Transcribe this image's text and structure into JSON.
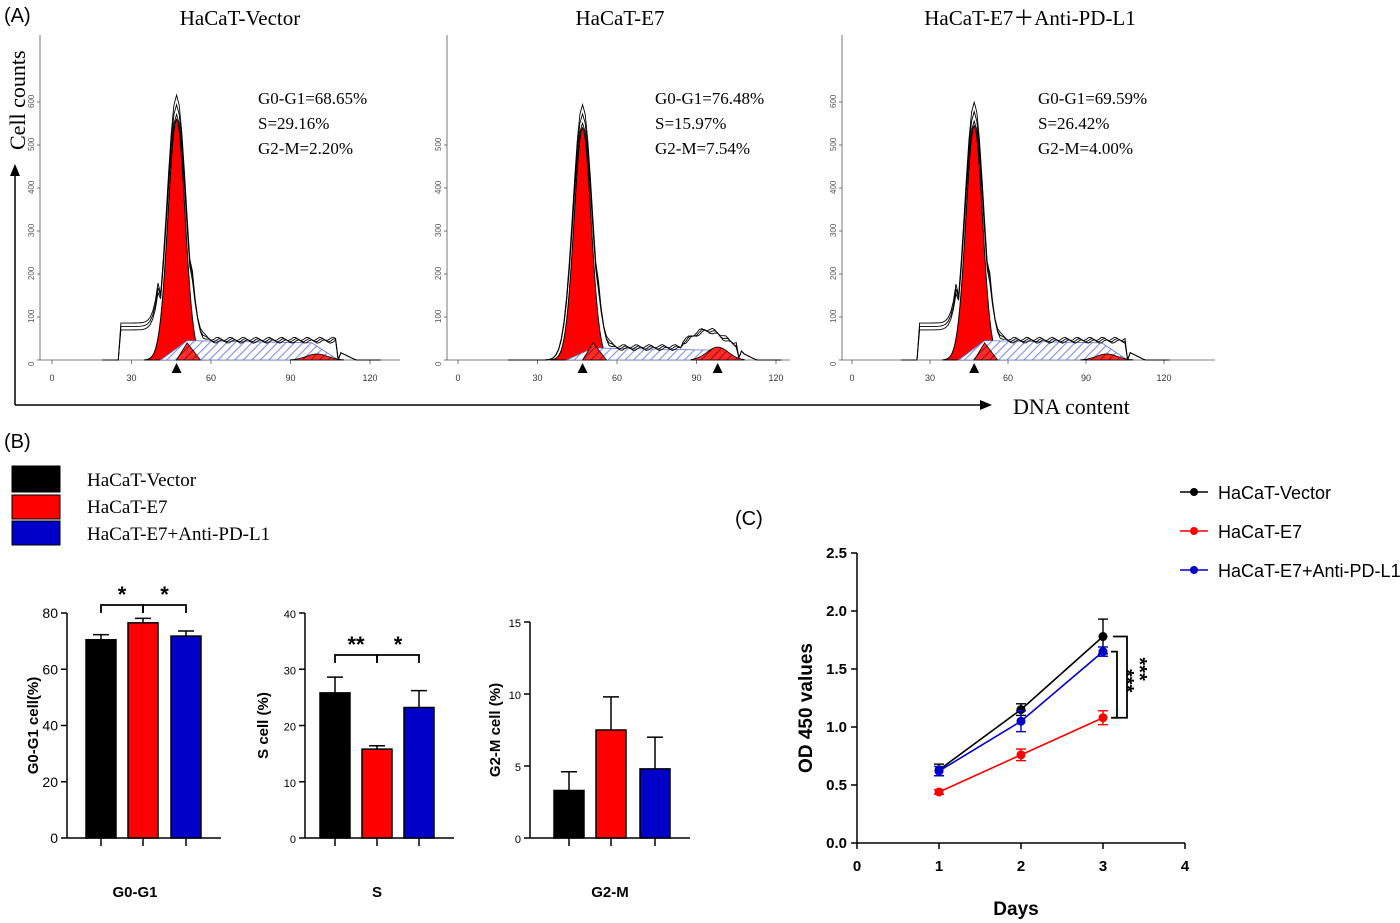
{
  "panels": {
    "A": {
      "panel_label": "(A)",
      "y_axis_label": "Cell counts",
      "x_axis_label": "DNA content",
      "histograms": [
        {
          "title": "HaCaT-Vector",
          "stats": [
            "G0-G1=68.65%",
            "S=29.16%",
            "G2-M=2.20%"
          ],
          "x_ticks": [
            "0",
            "30",
            "60",
            "90",
            "120"
          ],
          "y_ticks": [
            "0",
            "100",
            "200",
            "300",
            "400",
            "500",
            "600"
          ],
          "peak_g1_x": 47,
          "peak_g2_x": 100,
          "peak_height": 560
        },
        {
          "title": "HaCaT-E7",
          "stats": [
            "G0-G1=76.48%",
            "S=15.97%",
            "G2-M=7.54%"
          ],
          "x_ticks": [
            "0",
            "30",
            "60",
            "90",
            "120"
          ],
          "y_ticks": [
            "0",
            "100",
            "200",
            "300",
            "400",
            "500"
          ],
          "peak_g1_x": 47,
          "peak_g2_x": 98,
          "peak_height": 540
        },
        {
          "title": "HaCaT-E7＋Anti-PD-L1",
          "stats": [
            "G0-G1=69.59%",
            "S=26.42%",
            "G2-M=4.00%"
          ],
          "x_ticks": [
            "0",
            "30",
            "60",
            "90",
            "120"
          ],
          "y_ticks": [
            "0",
            "100",
            "200",
            "300",
            "400",
            "500",
            "600"
          ],
          "peak_g1_x": 47,
          "peak_g2_x": 98,
          "peak_height": 545
        }
      ]
    },
    "B": {
      "panel_label": "(B)",
      "legend": [
        "HaCaT-Vector",
        "HaCaT-E7",
        "HaCaT-E7+Anti-PD-L1"
      ]
    },
    "C": {
      "panel_label": "(C)"
    }
  },
  "colors": {
    "vector": "#000000",
    "e7": "#ff0000",
    "anti": "#0000c8",
    "hist_fill": "#ff0000",
    "s_phase": "#9aa8e8"
  },
  "chart_data": [
    {
      "type": "bar",
      "title": "",
      "xlabel": "G0-G1",
      "ylabel": "G0-G1 cell(%)",
      "categories": [
        "HaCaT-Vector",
        "HaCaT-E7",
        "HaCaT-E7+Anti-PD-L1"
      ],
      "values": [
        70.5,
        76.5,
        71.8
      ],
      "errors": [
        1.8,
        1.6,
        1.8
      ],
      "ylim": [
        0,
        80
      ],
      "yticks": [
        "0",
        "20",
        "40",
        "60",
        "80"
      ],
      "significance": [
        "*",
        "*"
      ]
    },
    {
      "type": "bar",
      "title": "",
      "xlabel": "S",
      "ylabel": "S cell (%)",
      "categories": [
        "HaCaT-Vector",
        "HaCaT-E7",
        "HaCaT-E7+Anti-PD-L1"
      ],
      "values": [
        25.8,
        15.8,
        23.2
      ],
      "errors": [
        2.8,
        0.6,
        3.0
      ],
      "ylim": [
        0,
        40
      ],
      "yticks": [
        "0",
        "10",
        "20",
        "30",
        "40"
      ],
      "significance": [
        "**",
        "*"
      ]
    },
    {
      "type": "bar",
      "title": "",
      "xlabel": "G2-M",
      "ylabel": "G2-M cell (%)",
      "categories": [
        "HaCaT-Vector",
        "HaCaT-E7",
        "HaCaT-E7+Anti-PD-L1"
      ],
      "values": [
        3.3,
        7.5,
        4.8
      ],
      "errors": [
        1.3,
        2.3,
        2.2
      ],
      "ylim": [
        0,
        15
      ],
      "yticks": [
        "0",
        "5",
        "10",
        "15"
      ],
      "significance": []
    },
    {
      "type": "line",
      "title": "",
      "xlabel": "Days",
      "ylabel": "OD 450 values",
      "x": [
        1,
        2,
        3
      ],
      "xlim": [
        0,
        4
      ],
      "ylim": [
        0,
        2.5
      ],
      "xticks": [
        "0",
        "1",
        "2",
        "3",
        "4"
      ],
      "yticks": [
        "0.0",
        "0.5",
        "1.0",
        "1.5",
        "2.0",
        "2.5"
      ],
      "series": [
        {
          "name": "HaCaT-Vector",
          "values": [
            0.63,
            1.15,
            1.78
          ],
          "errors": [
            0.05,
            0.05,
            0.15
          ]
        },
        {
          "name": "HaCaT-E7",
          "values": [
            0.44,
            0.76,
            1.08
          ],
          "errors": [
            0.02,
            0.05,
            0.06
          ]
        },
        {
          "name": "HaCaT-E7+Anti-PD-L1",
          "values": [
            0.62,
            1.05,
            1.65
          ],
          "errors": [
            0.04,
            0.09,
            0.04
          ]
        }
      ],
      "significance": [
        "***",
        "***"
      ]
    }
  ]
}
